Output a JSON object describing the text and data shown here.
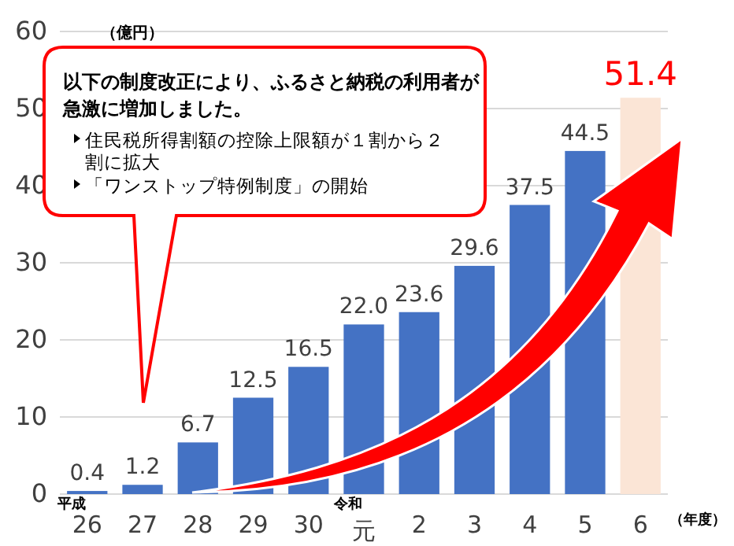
{
  "chart_data": {
    "type": "bar",
    "ylabel": "（億円）",
    "xlabel": "（年度）",
    "categories": [
      "26",
      "27",
      "28",
      "29",
      "30",
      "元",
      "2",
      "3",
      "4",
      "5",
      "6"
    ],
    "values": [
      0.4,
      1.2,
      6.7,
      12.5,
      16.5,
      22.0,
      23.6,
      29.6,
      37.5,
      44.5,
      51.4
    ],
    "value_labels": [
      "0.4",
      "1.2",
      "6.7",
      "12.5",
      "16.5",
      "22.0",
      "23.6",
      "29.6",
      "37.5",
      "44.5",
      "51.4"
    ],
    "colors": [
      "#4472c4",
      "#4472c4",
      "#4472c4",
      "#4472c4",
      "#4472c4",
      "#4472c4",
      "#4472c4",
      "#4472c4",
      "#4472c4",
      "#4472c4",
      "#fbe5d6"
    ],
    "ylim": [
      0,
      60
    ],
    "yticks": [
      0,
      10,
      20,
      30,
      40,
      50,
      60
    ],
    "grid": "y",
    "annotations": [
      "平成",
      "令和",
      "以下の制度改正により、ふるさと納税の利用者が急激に増加しました。",
      "住民税所得割額の控除上限額が１割から２割に拡大",
      "「ワンストップ特例制度」の開始"
    ]
  }
}
